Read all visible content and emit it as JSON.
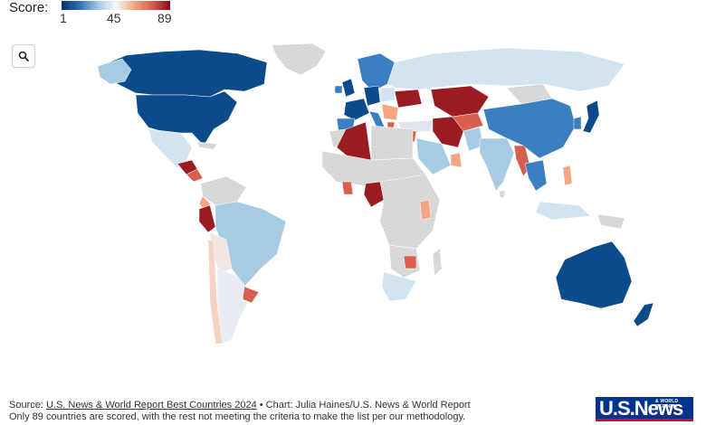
{
  "legend": {
    "title": "Score:",
    "min_label": "1",
    "mid_label": "45",
    "max_label": "89",
    "low_color": "#08306b",
    "high_color": "#8b0a1a"
  },
  "controls": {
    "search_icon": "search-icon"
  },
  "footer": {
    "source_prefix": "Source: ",
    "source_link": "U.S. News & World Report Best Countries 2024",
    "chart_credit": " • Chart: Julia Haines/U.S. News & World Report",
    "note": "Only 89 countries are scored, with the rest not meeting the criteria to make the list per our methodology."
  },
  "logo": {
    "main": "U.S.News",
    "small": "& WORLD REPORT"
  },
  "map_colors": {
    "unscored": "#d9d9d9",
    "dark_blue": "#0b4a8b",
    "mid_blue": "#3a7fc0",
    "light_blue": "#a6cbe3",
    "pale_blue": "#d3e4f1",
    "pale": "#f2f2f2",
    "salmon": "#f4a582",
    "red": "#d6604d",
    "dark_red": "#9b1b22",
    "darkest_red": "#6f0015"
  }
}
